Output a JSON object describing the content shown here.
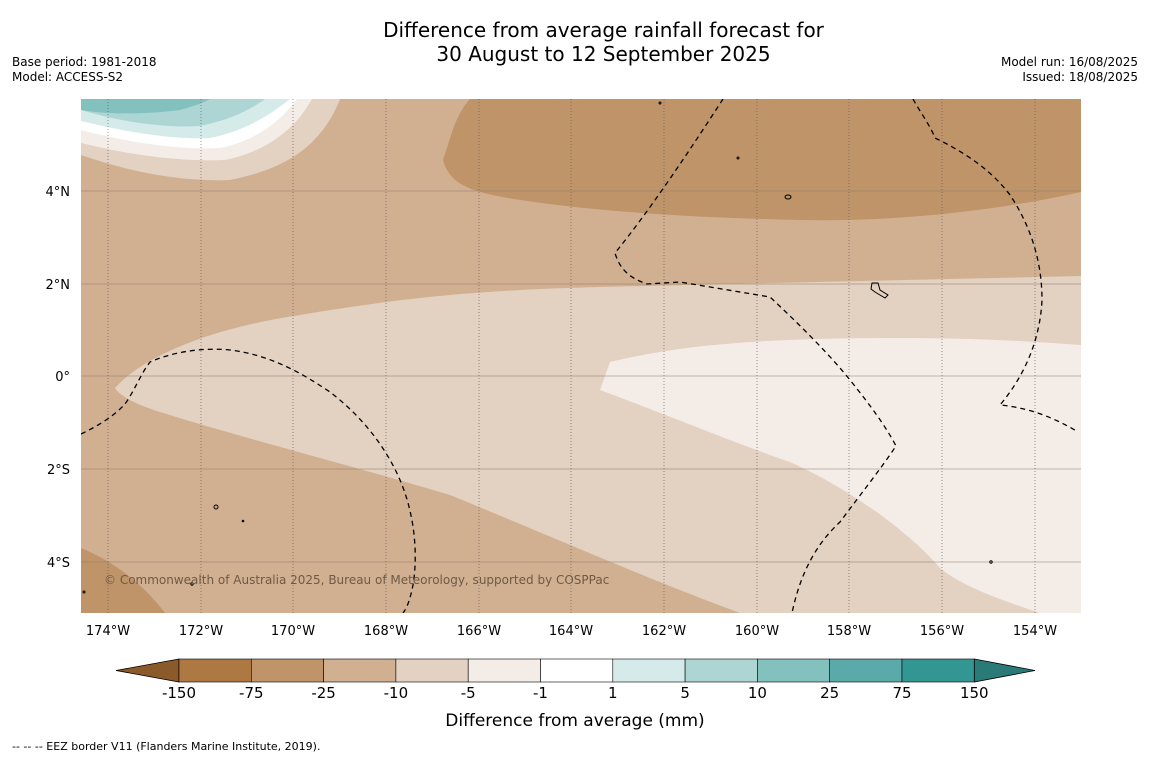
{
  "title": {
    "line1": "Difference from average rainfall forecast for",
    "line2": "30 August to 12 September 2025"
  },
  "meta_left": {
    "base_period": "Base period: 1981-2018",
    "model": "Model: ACCESS-S2"
  },
  "meta_right": {
    "model_run": "Model run: 16/08/2025",
    "issued": "Issued: 18/08/2025"
  },
  "map": {
    "lat_labels": [
      "4°N",
      "2°N",
      "0°",
      "2°S",
      "4°S"
    ],
    "lon_labels": [
      "174°W",
      "172°W",
      "170°W",
      "168°W",
      "166°W",
      "164°W",
      "162°W",
      "160°W",
      "158°W",
      "156°W",
      "154°W"
    ],
    "copyright": "© Commonwealth of Australia 2025, Bureau of Meteorology, supported by COSPPac"
  },
  "legend": {
    "colors": [
      "#8b5a2b",
      "#ae7842",
      "#bf9469",
      "#d1b092",
      "#e3d1c1",
      "#f4ece6",
      "#ffffff",
      "#d4ebe9",
      "#acd5d3",
      "#82c1bd",
      "#59aaa8",
      "#329693",
      "#2a7b78"
    ],
    "tick_labels": [
      "-150",
      "-75",
      "-25",
      "-10",
      "-5",
      "-1",
      "1",
      "5",
      "10",
      "25",
      "75",
      "150"
    ],
    "title": "Difference from average (mm)"
  },
  "footnote": "--  --  -- EEZ border V11 (Flanders Marine Institute, 2019)."
}
